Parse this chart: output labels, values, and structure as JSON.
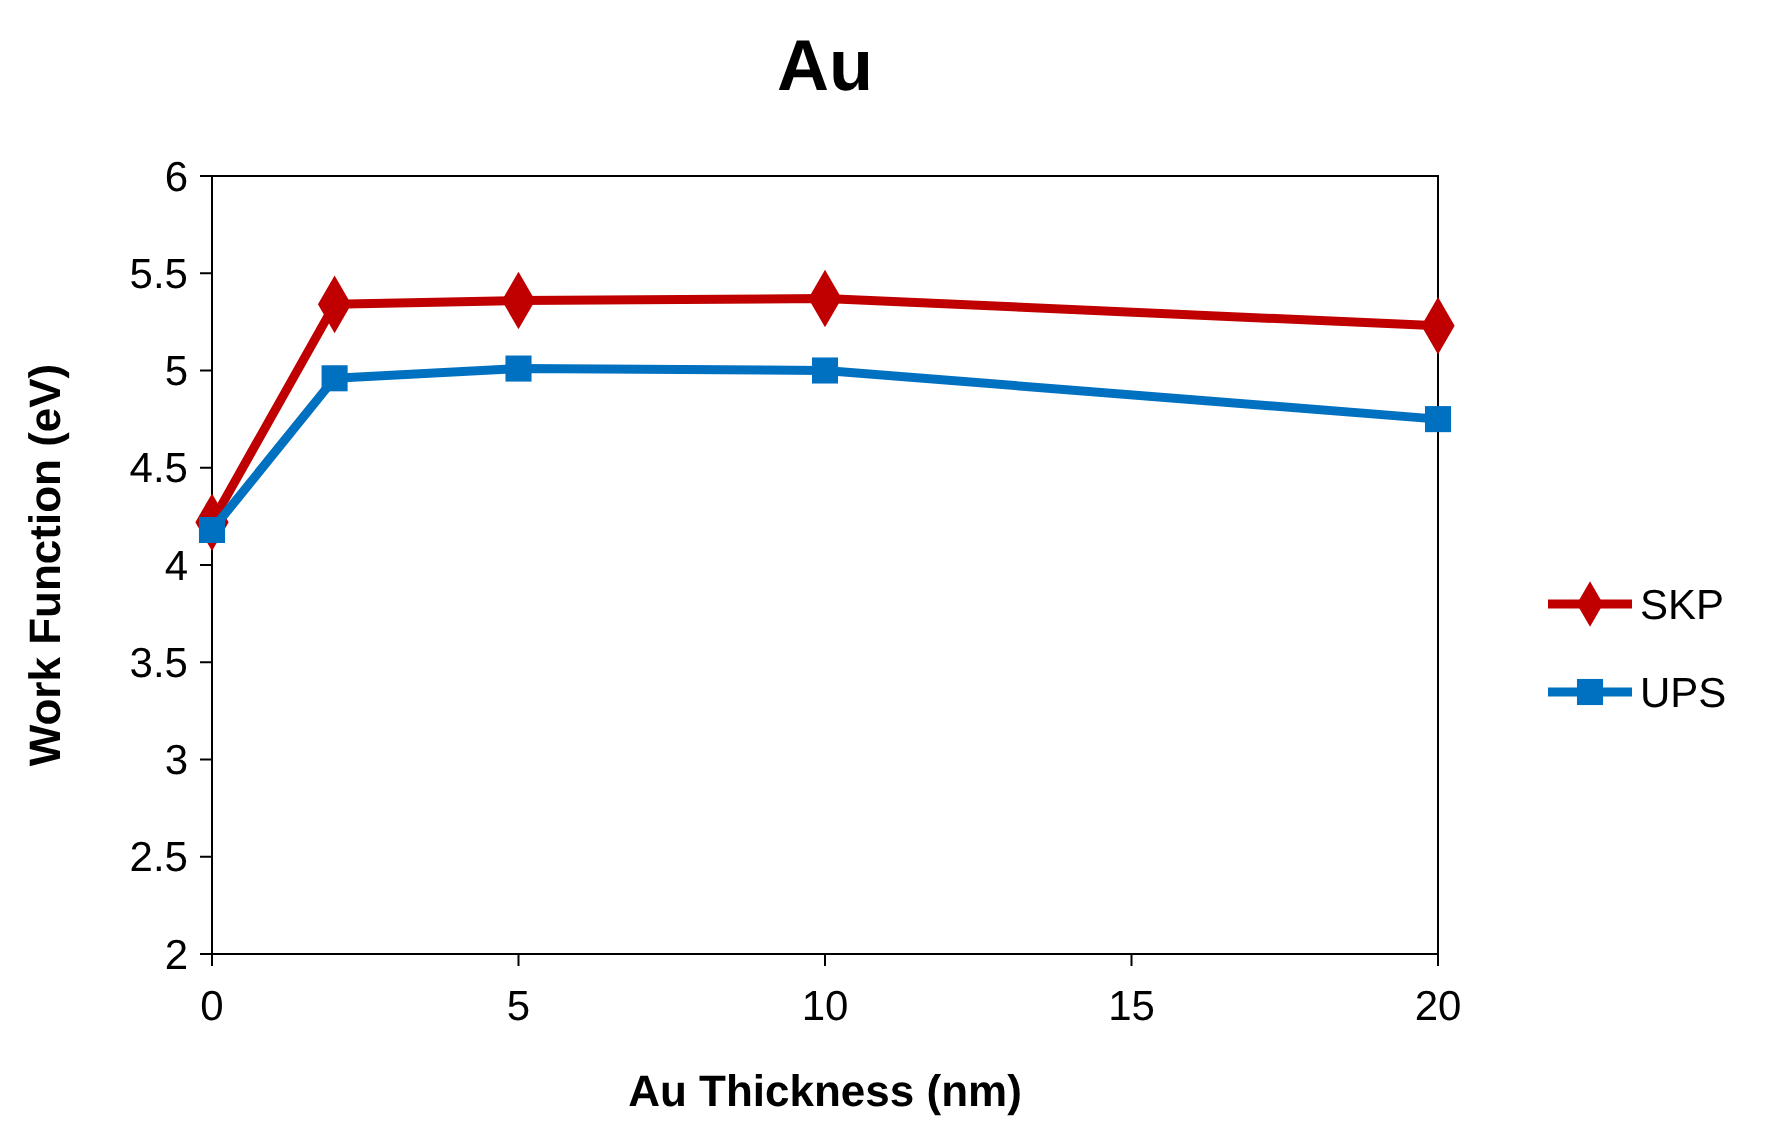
{
  "chart_data": {
    "type": "line",
    "title": "Au",
    "xlabel": "Au Thickness (nm)",
    "ylabel": "Work Function (eV)",
    "x": [
      0,
      2,
      5,
      10,
      20
    ],
    "series": [
      {
        "name": "SKP",
        "color": "#c00000",
        "values": [
          4.22,
          5.34,
          5.36,
          5.37,
          5.23
        ],
        "marker": "diamond"
      },
      {
        "name": "UPS",
        "color": "#0070c0",
        "values": [
          4.18,
          4.96,
          5.01,
          5.0,
          4.75
        ],
        "marker": "square"
      }
    ],
    "xlim": [
      0,
      20
    ],
    "xticks": [
      0,
      5,
      10,
      15,
      20
    ],
    "ylim": [
      2,
      6
    ],
    "yticks": [
      2,
      2.5,
      3,
      3.5,
      4,
      4.5,
      5,
      5.5,
      6
    ],
    "grid": false,
    "legend": "right",
    "line_style": "solid"
  }
}
